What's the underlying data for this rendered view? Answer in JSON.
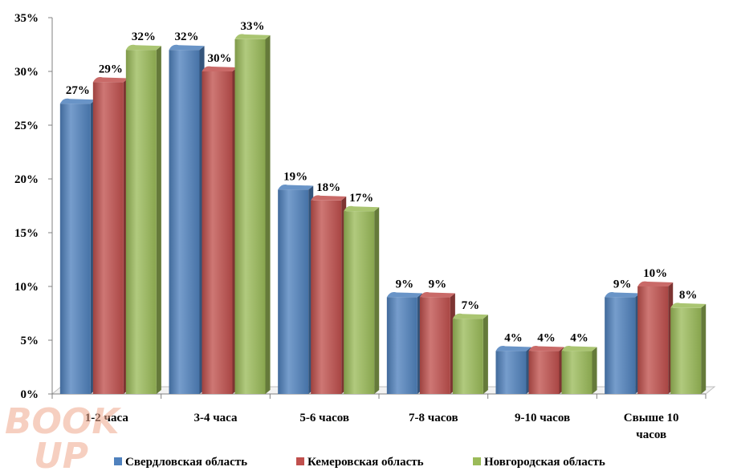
{
  "chart_data": {
    "type": "bar",
    "categories": [
      [
        "1-2 часа"
      ],
      [
        "3-4 часа"
      ],
      [
        "5-6 часов"
      ],
      [
        "7-8 часов"
      ],
      [
        "9-10 часов"
      ],
      [
        "Свыше 10",
        "часов"
      ]
    ],
    "series": [
      {
        "name": "Свердловская область",
        "values": [
          27,
          32,
          19,
          9,
          4,
          9
        ],
        "color": "#4f81bd"
      },
      {
        "name": "Кемеровская область",
        "values": [
          29,
          30,
          18,
          9,
          4,
          10
        ],
        "color": "#c0504d"
      },
      {
        "name": "Новгородская область",
        "values": [
          32,
          33,
          17,
          7,
          4,
          8
        ],
        "color": "#9bbb59"
      }
    ],
    "y_ticks": [
      "0%",
      "5%",
      "10%",
      "15%",
      "20%",
      "25%",
      "30%",
      "35%"
    ],
    "ylim": [
      0,
      35
    ],
    "grid": false,
    "legend_position": "bottom",
    "data_label_suffix": "%"
  },
  "watermark": {
    "line1": "BOOK",
    "line2": "UP"
  }
}
